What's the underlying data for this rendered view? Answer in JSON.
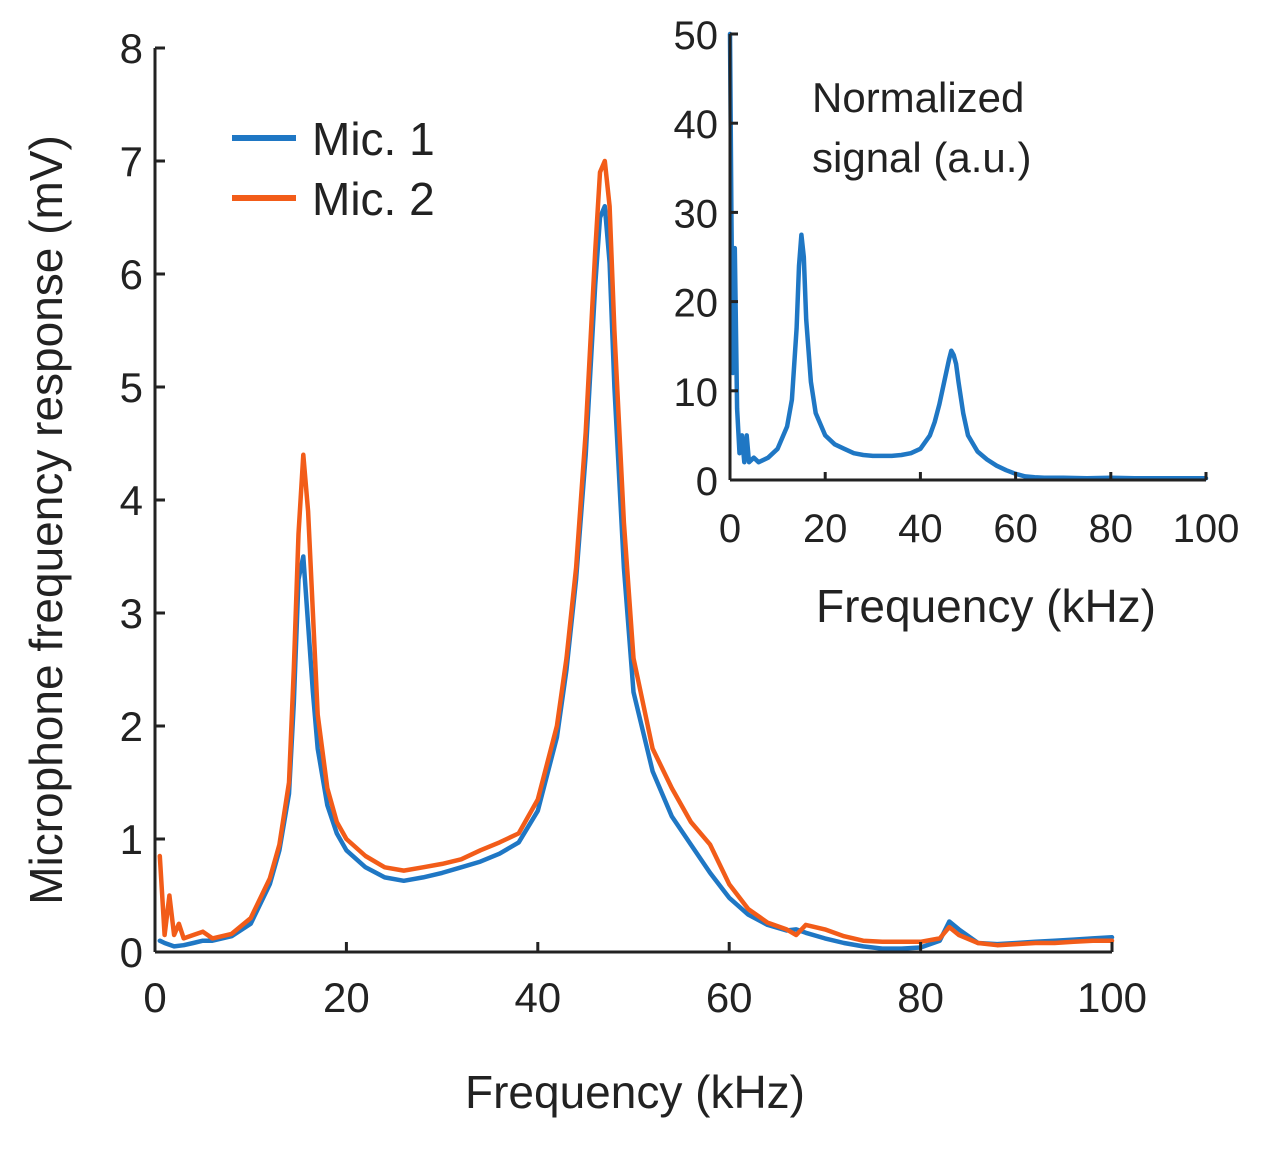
{
  "colors": {
    "mic1": "#1f77c4",
    "mic2": "#f25c19",
    "axis": "#222222"
  },
  "chart_data": [
    {
      "type": "line",
      "xlabel": "Frequency (kHz)",
      "ylabel": "Microphone frequency  response (mV)",
      "xlim": [
        0,
        100
      ],
      "ylim": [
        0,
        8
      ],
      "xticks": [
        0,
        20,
        40,
        60,
        80,
        100
      ],
      "yticks": [
        0,
        1,
        2,
        3,
        4,
        5,
        6,
        7,
        8
      ],
      "grid": false,
      "legend": {
        "position": "top-left",
        "entries": [
          "Mic. 1",
          "Mic. 2"
        ]
      },
      "series": [
        {
          "name": "Mic. 1",
          "color": "#1f77c4",
          "x": [
            0.5,
            1,
            2,
            3,
            4,
            5,
            6,
            8,
            10,
            12,
            13,
            14,
            14.5,
            15,
            15.5,
            16,
            16.5,
            17,
            18,
            19,
            20,
            22,
            24,
            26,
            28,
            30,
            32,
            34,
            36,
            38,
            40,
            42,
            43,
            44,
            45,
            46,
            46.5,
            47,
            47.5,
            48,
            49,
            50,
            52,
            54,
            56,
            58,
            60,
            62,
            64,
            66,
            67,
            68,
            70,
            72,
            74,
            76,
            78,
            80,
            82,
            83,
            84,
            86,
            88,
            90,
            92,
            94,
            96,
            98,
            100
          ],
          "y": [
            0.1,
            0.08,
            0.05,
            0.06,
            0.08,
            0.1,
            0.1,
            0.14,
            0.25,
            0.6,
            0.9,
            1.4,
            2.2,
            3.3,
            3.5,
            2.9,
            2.3,
            1.8,
            1.3,
            1.05,
            0.9,
            0.75,
            0.66,
            0.63,
            0.66,
            0.7,
            0.75,
            0.8,
            0.87,
            0.97,
            1.25,
            1.9,
            2.5,
            3.3,
            4.4,
            5.9,
            6.5,
            6.6,
            6.1,
            5.0,
            3.4,
            2.3,
            1.6,
            1.2,
            0.95,
            0.7,
            0.48,
            0.33,
            0.24,
            0.19,
            0.2,
            0.17,
            0.12,
            0.08,
            0.05,
            0.03,
            0.03,
            0.04,
            0.1,
            0.27,
            0.2,
            0.08,
            0.07,
            0.08,
            0.09,
            0.1,
            0.11,
            0.12,
            0.13
          ]
        },
        {
          "name": "Mic. 2",
          "color": "#f25c19",
          "x": [
            0.5,
            1,
            1.5,
            2,
            2.5,
            3,
            4,
            5,
            6,
            8,
            10,
            12,
            13,
            14,
            14.5,
            15,
            15.5,
            16,
            16.5,
            17,
            18,
            19,
            20,
            22,
            24,
            26,
            28,
            30,
            32,
            34,
            36,
            38,
            40,
            42,
            43,
            44,
            45,
            46,
            46.5,
            47,
            47.5,
            48,
            49,
            50,
            52,
            54,
            56,
            58,
            60,
            62,
            64,
            66,
            67,
            68,
            70,
            72,
            74,
            76,
            78,
            80,
            82,
            83,
            84,
            86,
            88,
            90,
            92,
            94,
            96,
            98,
            100
          ],
          "y": [
            0.85,
            0.15,
            0.5,
            0.15,
            0.25,
            0.12,
            0.15,
            0.18,
            0.12,
            0.16,
            0.3,
            0.65,
            0.95,
            1.5,
            2.5,
            3.7,
            4.4,
            3.9,
            3.0,
            2.1,
            1.45,
            1.15,
            1.0,
            0.85,
            0.75,
            0.72,
            0.75,
            0.78,
            0.82,
            0.9,
            0.97,
            1.05,
            1.35,
            2.0,
            2.6,
            3.4,
            4.6,
            6.2,
            6.9,
            7.0,
            6.6,
            5.5,
            3.8,
            2.6,
            1.8,
            1.45,
            1.15,
            0.95,
            0.6,
            0.38,
            0.26,
            0.2,
            0.15,
            0.24,
            0.2,
            0.14,
            0.1,
            0.09,
            0.09,
            0.09,
            0.12,
            0.22,
            0.15,
            0.08,
            0.06,
            0.07,
            0.08,
            0.08,
            0.09,
            0.1,
            0.1
          ]
        }
      ]
    },
    {
      "type": "line",
      "xlabel": "Frequency (kHz)",
      "ylabel": "",
      "annotation": "Normalized\nsignal (a.u.)",
      "xlim": [
        0,
        100
      ],
      "ylim": [
        0,
        50
      ],
      "xticks": [
        0,
        20,
        40,
        60,
        80,
        100
      ],
      "yticks": [
        0,
        10,
        20,
        30,
        40,
        50
      ],
      "grid": false,
      "series": [
        {
          "color": "#1f77c4",
          "x": [
            0,
            0.3,
            0.6,
            1,
            1.5,
            2,
            2.5,
            3,
            3.5,
            4,
            5,
            6,
            8,
            10,
            12,
            13,
            14,
            14.5,
            15,
            15.5,
            16,
            17,
            18,
            20,
            22,
            24,
            26,
            28,
            30,
            32,
            34,
            36,
            38,
            40,
            42,
            43,
            44,
            45,
            46,
            46.5,
            47,
            47.5,
            48,
            49,
            50,
            52,
            54,
            56,
            58,
            60,
            62,
            64,
            66,
            68,
            70,
            75,
            80,
            85,
            90,
            95,
            100
          ],
          "y": [
            50,
            30,
            12,
            26,
            8,
            3,
            5,
            2,
            5,
            2,
            2.5,
            2,
            2.5,
            3.5,
            6,
            9,
            17,
            24,
            27.5,
            25,
            18,
            11,
            7.5,
            5,
            4,
            3.5,
            3,
            2.8,
            2.7,
            2.7,
            2.7,
            2.8,
            3,
            3.5,
            5,
            6.5,
            8.5,
            11,
            13.5,
            14.5,
            14,
            13,
            11,
            7.5,
            5,
            3.2,
            2.3,
            1.6,
            1.1,
            0.7,
            0.4,
            0.3,
            0.25,
            0.25,
            0.25,
            0.2,
            0.25,
            0.2,
            0.2,
            0.2,
            0.2
          ]
        }
      ]
    }
  ]
}
